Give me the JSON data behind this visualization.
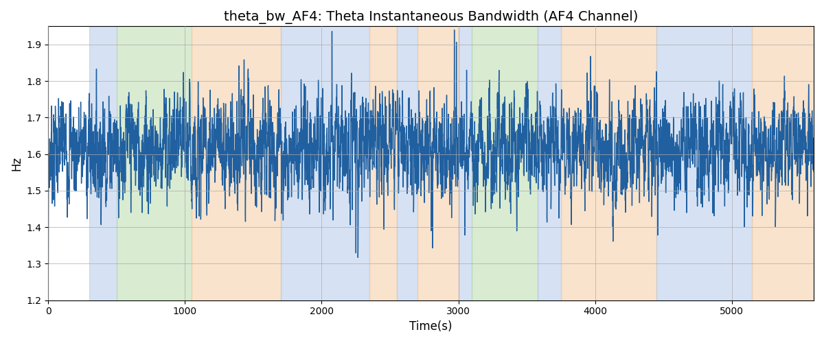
{
  "title": "theta_bw_AF4: Theta Instantaneous Bandwidth (AF4 Channel)",
  "xlabel": "Time(s)",
  "ylabel": "Hz",
  "ylim": [
    1.2,
    1.95
  ],
  "xlim": [
    0,
    5600
  ],
  "line_color": "#2060a0",
  "line_width": 1.0,
  "bg_color": "#ffffff",
  "grid_color": "#aaaaaa",
  "title_fontsize": 14,
  "label_fontsize": 12,
  "colored_regions": [
    {
      "xmin": 300,
      "xmax": 500,
      "color": "#aec6e8",
      "alpha": 0.5
    },
    {
      "xmin": 500,
      "xmax": 1050,
      "color": "#b5d9a5",
      "alpha": 0.5
    },
    {
      "xmin": 1050,
      "xmax": 1700,
      "color": "#f5c89a",
      "alpha": 0.5
    },
    {
      "xmin": 1700,
      "xmax": 2350,
      "color": "#aec6e8",
      "alpha": 0.5
    },
    {
      "xmin": 2350,
      "xmax": 2550,
      "color": "#f5c89a",
      "alpha": 0.5
    },
    {
      "xmin": 2550,
      "xmax": 2700,
      "color": "#aec6e8",
      "alpha": 0.5
    },
    {
      "xmin": 2700,
      "xmax": 3000,
      "color": "#f5c89a",
      "alpha": 0.5
    },
    {
      "xmin": 3000,
      "xmax": 3100,
      "color": "#aec6e8",
      "alpha": 0.5
    },
    {
      "xmin": 3100,
      "xmax": 3580,
      "color": "#b5d9a5",
      "alpha": 0.5
    },
    {
      "xmin": 3580,
      "xmax": 3750,
      "color": "#aec6e8",
      "alpha": 0.5
    },
    {
      "xmin": 3750,
      "xmax": 4450,
      "color": "#f5c89a",
      "alpha": 0.5
    },
    {
      "xmin": 4450,
      "xmax": 5150,
      "color": "#aec6e8",
      "alpha": 0.5
    },
    {
      "xmin": 5150,
      "xmax": 5600,
      "color": "#f5c89a",
      "alpha": 0.5
    }
  ],
  "n_points": 5600,
  "x_start": 0,
  "x_end": 5600,
  "base_level": 1.62,
  "noise_std": 0.055,
  "mean_revert_strength": 0.35,
  "seed": 7
}
